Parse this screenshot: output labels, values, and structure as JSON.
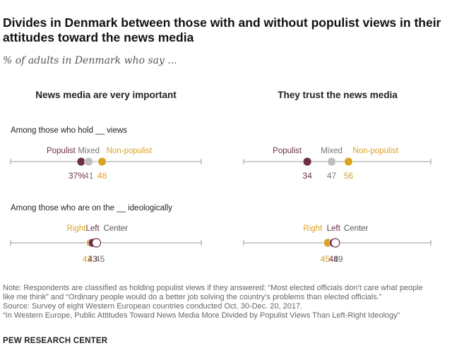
{
  "title": "Divides in Denmark between those with and without populist views in their attitudes toward the news media",
  "subtitle": "% of adults in Denmark who say ...",
  "panel_titles": [
    "News media are very important",
    "They trust the news media"
  ],
  "group_headers": [
    "Among those who hold __ views",
    "Among those who are on the __ ideologically"
  ],
  "colors": {
    "populist": "#6d2e46",
    "mixed": "#bfbfbf",
    "non_populist": "#d9a325",
    "right": "#d9a325",
    "left": "#6d2e46",
    "center": "#ffffff",
    "axis": "#9a9a9a",
    "label_gray": "#666666"
  },
  "chart_data": [
    {
      "type": "scatter",
      "panel": "News media are very important",
      "group": "Among those who hold __ views",
      "xlim": [
        0,
        100
      ],
      "points": [
        {
          "name": "Populist",
          "value": 37,
          "label": "37%",
          "color": "#6d2e46"
        },
        {
          "name": "Mixed",
          "value": 41,
          "label": "41",
          "color": "#bfbfbf"
        },
        {
          "name": "Non-populist",
          "value": 48,
          "label": "48",
          "color": "#d9a325"
        }
      ]
    },
    {
      "type": "scatter",
      "panel": "They trust the news media",
      "group": "Among those who hold __ views",
      "xlim": [
        0,
        100
      ],
      "points": [
        {
          "name": "Populist",
          "value": 34,
          "label": "34",
          "color": "#6d2e46"
        },
        {
          "name": "Mixed",
          "value": 47,
          "label": "47",
          "color": "#bfbfbf"
        },
        {
          "name": "Non-populist",
          "value": 56,
          "label": "56",
          "color": "#d9a325"
        }
      ]
    },
    {
      "type": "scatter",
      "panel": "News media are very important",
      "group": "Among those who are on the __ ideologically",
      "xlim": [
        0,
        100
      ],
      "points": [
        {
          "name": "Right",
          "value": 42,
          "label": "42",
          "color": "#d9a325"
        },
        {
          "name": "Left",
          "value": 43,
          "label": "43",
          "color": "#6d2e46"
        },
        {
          "name": "Center",
          "value": 45,
          "label": "45",
          "color": "#ffffff"
        }
      ]
    },
    {
      "type": "scatter",
      "panel": "They trust the news media",
      "group": "Among those who are on the __ ideologically",
      "xlim": [
        0,
        100
      ],
      "points": [
        {
          "name": "Right",
          "value": 45,
          "label": "45",
          "color": "#d9a325"
        },
        {
          "name": "Left",
          "value": 48,
          "label": "48",
          "color": "#6d2e46"
        },
        {
          "name": "Center",
          "value": 49,
          "label": "49",
          "color": "#ffffff"
        }
      ]
    }
  ],
  "notes": [
    "Note: Respondents are classified as holding populist views if they answered: “Most elected officials don’t care what people",
    "like me think” and “Ordinary people would do a better job solving the country’s problems than elected officials.”",
    "Source: Survey of eight Western European countries conducted Oct. 30-Dec. 20, 2017.",
    "“In Western Europe, Public Attitudes Toward News Media More Divided by Populist Views Than Left-Right Ideology”"
  ],
  "brand": "PEW RESEARCH CENTER"
}
